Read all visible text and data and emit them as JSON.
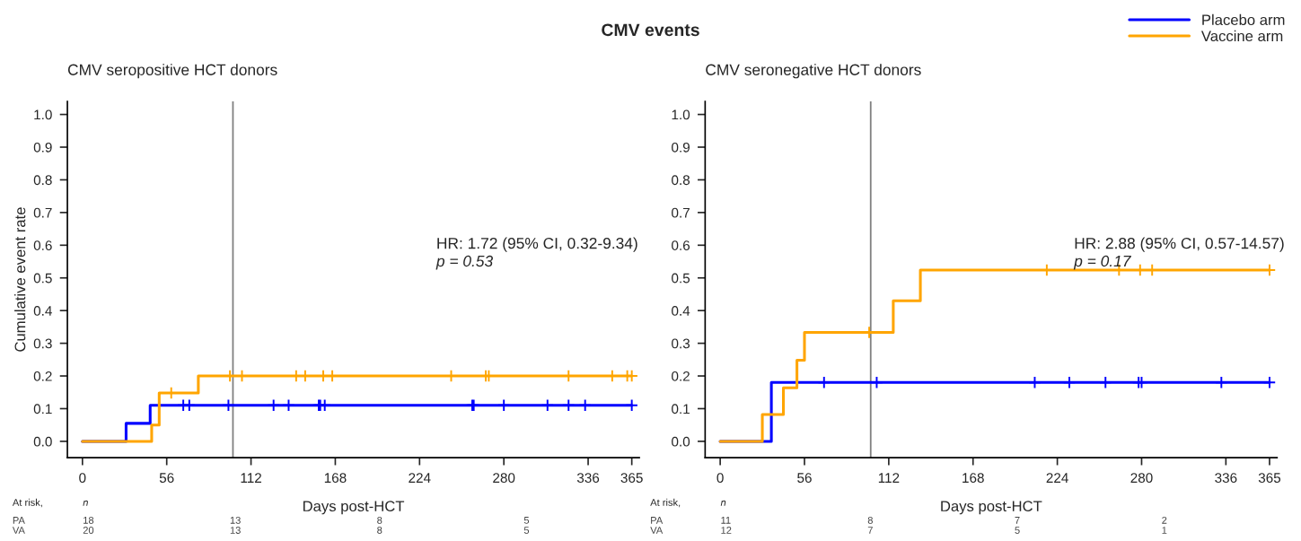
{
  "chart_data": [
    {
      "type": "step",
      "title": "CMV events",
      "subtitle": "CMV seropositive HCT donors",
      "xlabel": "Days post-HCT",
      "ylabel": "Cumulative event rate",
      "xlim": [
        -10,
        370
      ],
      "ylim": [
        -0.05,
        1.04
      ],
      "xticks": [
        0,
        56,
        112,
        168,
        224,
        280,
        336,
        365
      ],
      "yticks": [
        {
          "value": 0,
          "label": "0.0"
        },
        {
          "value": 0.1,
          "label": "0.1"
        },
        {
          "value": 0.2,
          "label": "0.2"
        },
        {
          "value": 0.3,
          "label": "0.3"
        },
        {
          "value": 0.4,
          "label": "0.4"
        },
        {
          "value": 0.5,
          "label": "0.5"
        },
        {
          "value": 0.6,
          "label": "0.6"
        },
        {
          "value": 0.7,
          "label": "0.7"
        },
        {
          "value": 0.8,
          "label": "0.8"
        },
        {
          "value": 0.9,
          "label": "0.9"
        },
        {
          "value": 1,
          "label": "1.0"
        }
      ],
      "grid": false,
      "series": [
        {
          "color": "#0000ff",
          "x": [
            0,
            29,
            45,
            365
          ],
          "values": [
            0,
            0.055,
            0.11,
            0.11
          ]
        },
        {
          "color": "#ffa500",
          "x": [
            0,
            46,
            51,
            77,
            365
          ],
          "values": [
            0,
            0.05,
            0.148,
            0.2,
            0.2
          ]
        },
        {
          "color": "#0000ff",
          "type": "scatter",
          "marker": "cross",
          "x": [
            67,
            71,
            97,
            127,
            137,
            157,
            158,
            161,
            259,
            260,
            280,
            309,
            323,
            334,
            365
          ],
          "values": [
            0.11,
            0.11,
            0.11,
            0.11,
            0.11,
            0.11,
            0.11,
            0.11,
            0.11,
            0.11,
            0.11,
            0.11,
            0.11,
            0.11,
            0.11
          ]
        },
        {
          "color": "#ffa500",
          "type": "scatter",
          "marker": "cross",
          "x": [
            59,
            98,
            106,
            142,
            148,
            160,
            166,
            245,
            268,
            270,
            323,
            352,
            362,
            365
          ],
          "values": [
            0.148,
            0.2,
            0.2,
            0.2,
            0.2,
            0.2,
            0.2,
            0.2,
            0.2,
            0.2,
            0.2,
            0.2,
            0.2,
            0.2
          ]
        }
      ],
      "ref_lines": [
        {
          "axis": "x",
          "value": 100,
          "color": "#808080"
        }
      ],
      "annotations": [
        "HR: 1.72 (95% CI, 0.32-9.34)",
        "p = 0.53",
        "At risk,",
        "n",
        "PA 18 13 8 5",
        "VA 20 13 8 5"
      ]
    },
    {
      "type": "step",
      "subtitle": "CMV seronegative HCT donors",
      "xlabel": "Days post-HCT",
      "xlim": [
        -10,
        370
      ],
      "ylim": [
        -0.05,
        1.04
      ],
      "xticks": [
        0,
        56,
        112,
        168,
        224,
        280,
        336,
        365
      ],
      "yticks": [
        {
          "value": 0,
          "label": "0.0"
        },
        {
          "value": 0.1,
          "label": "0.1"
        },
        {
          "value": 0.2,
          "label": "0.2"
        },
        {
          "value": 0.3,
          "label": "0.3"
        },
        {
          "value": 0.4,
          "label": "0.4"
        },
        {
          "value": 0.5,
          "label": "0.5"
        },
        {
          "value": 0.6,
          "label": "0.6"
        },
        {
          "value": 0.7,
          "label": "0.7"
        },
        {
          "value": 0.8,
          "label": "0.8"
        },
        {
          "value": 0.9,
          "label": "0.9"
        },
        {
          "value": 1,
          "label": "1.0"
        }
      ],
      "grid": false,
      "legend": "top right",
      "series": [
        {
          "name": "Placebo arm",
          "color": "#0000ff",
          "x": [
            0,
            34,
            365
          ],
          "values": [
            0,
            0.18,
            0.18
          ]
        },
        {
          "name": "Vaccine arm",
          "color": "#ffa500",
          "x": [
            0,
            28,
            42,
            51,
            56,
            115,
            133,
            365
          ],
          "values": [
            0,
            0.082,
            0.164,
            0.248,
            0.333,
            0.43,
            0.524,
            0.524
          ]
        },
        {
          "color": "#0000ff",
          "type": "scatter",
          "marker": "cross",
          "x": [
            69,
            104,
            209,
            232,
            256,
            278,
            280,
            333,
            365
          ],
          "values": [
            0.18,
            0.18,
            0.18,
            0.18,
            0.18,
            0.18,
            0.18,
            0.18,
            0.18
          ]
        },
        {
          "color": "#ffa500",
          "type": "scatter",
          "marker": "cross",
          "x": [
            99,
            217,
            265,
            279,
            287,
            365
          ],
          "values": [
            0.333,
            0.524,
            0.524,
            0.524,
            0.524,
            0.524
          ]
        }
      ],
      "ref_lines": [
        {
          "axis": "x",
          "value": 100,
          "color": "#808080"
        }
      ],
      "annotations": [
        "HR: 2.88 (95% CI, 0.57-14.57)",
        "p = 0.17",
        "At risk,",
        "n",
        "PA 11 8 7 2",
        "VA 12 7 5 1"
      ]
    }
  ]
}
